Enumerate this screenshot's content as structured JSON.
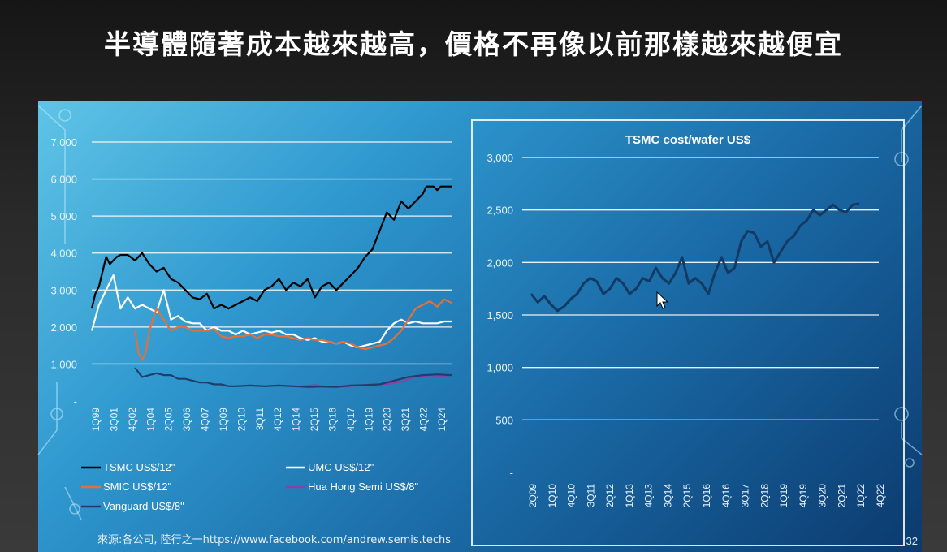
{
  "slide": {
    "title": "半導體隨著成本越來越高，價格不再像以前那樣越來越便宜",
    "source": "來源:各公司, 陸行之一https://www.facebook.com/andrew.semis.techs",
    "page_number": "32"
  },
  "colors": {
    "TSMC": "#000000",
    "UMC": "#ffffff",
    "SMIC": "#e2703a",
    "HuaHong": "#8e3fa6",
    "Vanguard": "#1f3f66",
    "cost_line": "#123a63",
    "grid": "#ffffff"
  },
  "chart_data": [
    {
      "type": "line",
      "title": "",
      "ylim": [
        0,
        7000
      ],
      "yticks": [
        "-",
        "1,000",
        "2,000",
        "3,000",
        "4,000",
        "5,000",
        "6,000",
        "7,000"
      ],
      "ytick_values": [
        0,
        1000,
        2000,
        3000,
        4000,
        5000,
        6000,
        7000
      ],
      "xticks": [
        "1Q99",
        "3Q01",
        "4Q02",
        "1Q04",
        "2Q05",
        "3Q06",
        "4Q07",
        "1Q09",
        "2Q10",
        "3Q11",
        "4Q12",
        "1Q14",
        "2Q15",
        "3Q16",
        "4Q17",
        "1Q19",
        "2Q20",
        "3Q21",
        "4Q22",
        "1Q24"
      ],
      "x_range": [
        0,
        100
      ],
      "legend": [
        "TSMC US$/12\"",
        "UMC US$/12\"",
        "SMIC US$/12\"",
        "Hua Hong Semi US$/8\"",
        "Vanguard US$/8\""
      ],
      "series": [
        {
          "name": "TSMC US$/12\"",
          "key": "TSMC",
          "x": [
            0,
            1,
            2,
            3,
            4,
            5,
            6,
            7,
            8,
            10,
            12,
            14,
            16,
            18,
            20,
            22,
            24,
            26,
            28,
            30,
            32,
            34,
            36,
            38,
            40,
            42,
            44,
            46,
            48,
            50,
            52,
            54,
            56,
            58,
            60,
            62,
            64,
            66,
            68,
            70,
            72,
            74,
            76,
            78,
            80,
            82,
            84,
            86,
            88,
            90,
            92,
            93,
            94,
            95,
            96,
            97,
            98,
            99,
            100
          ],
          "y": [
            2500,
            2900,
            3100,
            3500,
            3900,
            3700,
            3800,
            3900,
            3950,
            3950,
            3800,
            4000,
            3700,
            3500,
            3600,
            3300,
            3200,
            3000,
            2800,
            2750,
            2900,
            2500,
            2600,
            2500,
            2600,
            2700,
            2800,
            2700,
            3000,
            3100,
            3300,
            3000,
            3200,
            3100,
            3300,
            2800,
            3100,
            3200,
            3000,
            3200,
            3400,
            3600,
            3900,
            4100,
            4600,
            5100,
            4900,
            5400,
            5200,
            5400,
            5600,
            5800,
            5800,
            5800,
            5700,
            5800,
            5800,
            5800,
            5800
          ]
        },
        {
          "name": "UMC US$/12\"",
          "key": "UMC",
          "x": [
            0,
            2,
            4,
            6,
            8,
            10,
            12,
            14,
            16,
            18,
            20,
            22,
            24,
            26,
            28,
            30,
            32,
            34,
            36,
            38,
            40,
            42,
            44,
            46,
            48,
            50,
            52,
            54,
            56,
            58,
            60,
            62,
            64,
            66,
            68,
            70,
            72,
            74,
            76,
            78,
            80,
            82,
            84,
            86,
            88,
            90,
            92,
            94,
            96,
            98,
            100
          ],
          "y": [
            1900,
            2600,
            3000,
            3400,
            2500,
            2800,
            2500,
            2600,
            2500,
            2400,
            3000,
            2200,
            2300,
            2150,
            2100,
            2100,
            1900,
            2000,
            1900,
            1900,
            1800,
            1900,
            1800,
            1850,
            1900,
            1850,
            1900,
            1800,
            1800,
            1700,
            1650,
            1700,
            1600,
            1600,
            1550,
            1600,
            1500,
            1450,
            1500,
            1550,
            1600,
            1900,
            2100,
            2200,
            2100,
            2150,
            2100,
            2100,
            2100,
            2150,
            2150
          ]
        },
        {
          "name": "SMIC US$/12\"",
          "key": "SMIC",
          "x": [
            12,
            13,
            14,
            15,
            16,
            18,
            20,
            22,
            24,
            26,
            28,
            30,
            32,
            34,
            36,
            38,
            40,
            42,
            44,
            46,
            48,
            50,
            52,
            54,
            56,
            58,
            60,
            62,
            64,
            66,
            68,
            70,
            72,
            74,
            76,
            78,
            80,
            82,
            84,
            86,
            88,
            90,
            92,
            94,
            96,
            98,
            100
          ],
          "y": [
            1900,
            1300,
            1100,
            1300,
            1900,
            2500,
            2200,
            1900,
            2000,
            2000,
            1900,
            1900,
            1900,
            1950,
            1750,
            1700,
            1750,
            1750,
            1800,
            1700,
            1800,
            1800,
            1750,
            1750,
            1700,
            1650,
            1700,
            1650,
            1650,
            1600,
            1550,
            1600,
            1550,
            1450,
            1400,
            1450,
            1500,
            1550,
            1700,
            1900,
            2200,
            2500,
            2600,
            2700,
            2550,
            2750,
            2650
          ]
        },
        {
          "name": "Hua Hong Semi US$/8\"",
          "key": "HuaHong",
          "x": [
            58,
            62,
            66,
            70,
            74,
            78,
            82,
            86,
            90,
            94,
            98,
            100
          ],
          "y": [
            400,
            430,
            380,
            390,
            420,
            450,
            460,
            520,
            650,
            700,
            680,
            720
          ]
        },
        {
          "name": "Vanguard US$/8\"",
          "key": "Vanguard",
          "x": [
            12,
            14,
            16,
            18,
            20,
            22,
            24,
            26,
            28,
            30,
            32,
            34,
            36,
            38,
            40,
            44,
            48,
            52,
            56,
            60,
            64,
            68,
            72,
            76,
            80,
            84,
            88,
            92,
            96,
            100
          ],
          "y": [
            900,
            650,
            700,
            750,
            700,
            700,
            600,
            600,
            550,
            500,
            500,
            450,
            450,
            400,
            400,
            420,
            400,
            420,
            400,
            380,
            390,
            380,
            420,
            430,
            450,
            550,
            650,
            700,
            720,
            700
          ]
        }
      ]
    },
    {
      "type": "line",
      "title": "TSMC cost/wafer US$",
      "ylim": [
        0,
        3000
      ],
      "yticks": [
        "-",
        "500",
        "1,000",
        "1,500",
        "2,000",
        "2,500",
        "3,000"
      ],
      "ytick_values": [
        0,
        500,
        1000,
        1500,
        2000,
        2500,
        3000
      ],
      "xticks": [
        "2Q09",
        "1Q10",
        "4Q10",
        "3Q11",
        "2Q12",
        "1Q13",
        "4Q13",
        "3Q14",
        "2Q15",
        "1Q16",
        "4Q16",
        "3Q17",
        "2Q18",
        "1Q19",
        "4Q19",
        "3Q20",
        "2Q21",
        "1Q22",
        "4Q22"
      ],
      "x_range": [
        0,
        100
      ],
      "series": [
        {
          "name": "",
          "key": "cost_line",
          "x": [
            0,
            2,
            4,
            6,
            8,
            10,
            12,
            14,
            16,
            18,
            20,
            22,
            24,
            26,
            28,
            30,
            32,
            34,
            36,
            38,
            40,
            42,
            44,
            46,
            48,
            50,
            52,
            54,
            56,
            58,
            60,
            62,
            64,
            66,
            68,
            70,
            72,
            74,
            76,
            78,
            80,
            82,
            84,
            86,
            88,
            90,
            92,
            94,
            96,
            98,
            100
          ],
          "y": [
            1700,
            1620,
            1680,
            1600,
            1540,
            1580,
            1650,
            1700,
            1800,
            1850,
            1820,
            1700,
            1750,
            1850,
            1800,
            1700,
            1750,
            1850,
            1820,
            1950,
            1850,
            1800,
            1900,
            2050,
            1800,
            1850,
            1800,
            1700,
            1900,
            2050,
            1900,
            1950,
            2200,
            2300,
            2280,
            2150,
            2200,
            2000,
            2100,
            2200,
            2250,
            2350,
            2400,
            2500,
            2450,
            2500,
            2550,
            2500,
            2480,
            2550,
            2560
          ]
        }
      ]
    }
  ]
}
